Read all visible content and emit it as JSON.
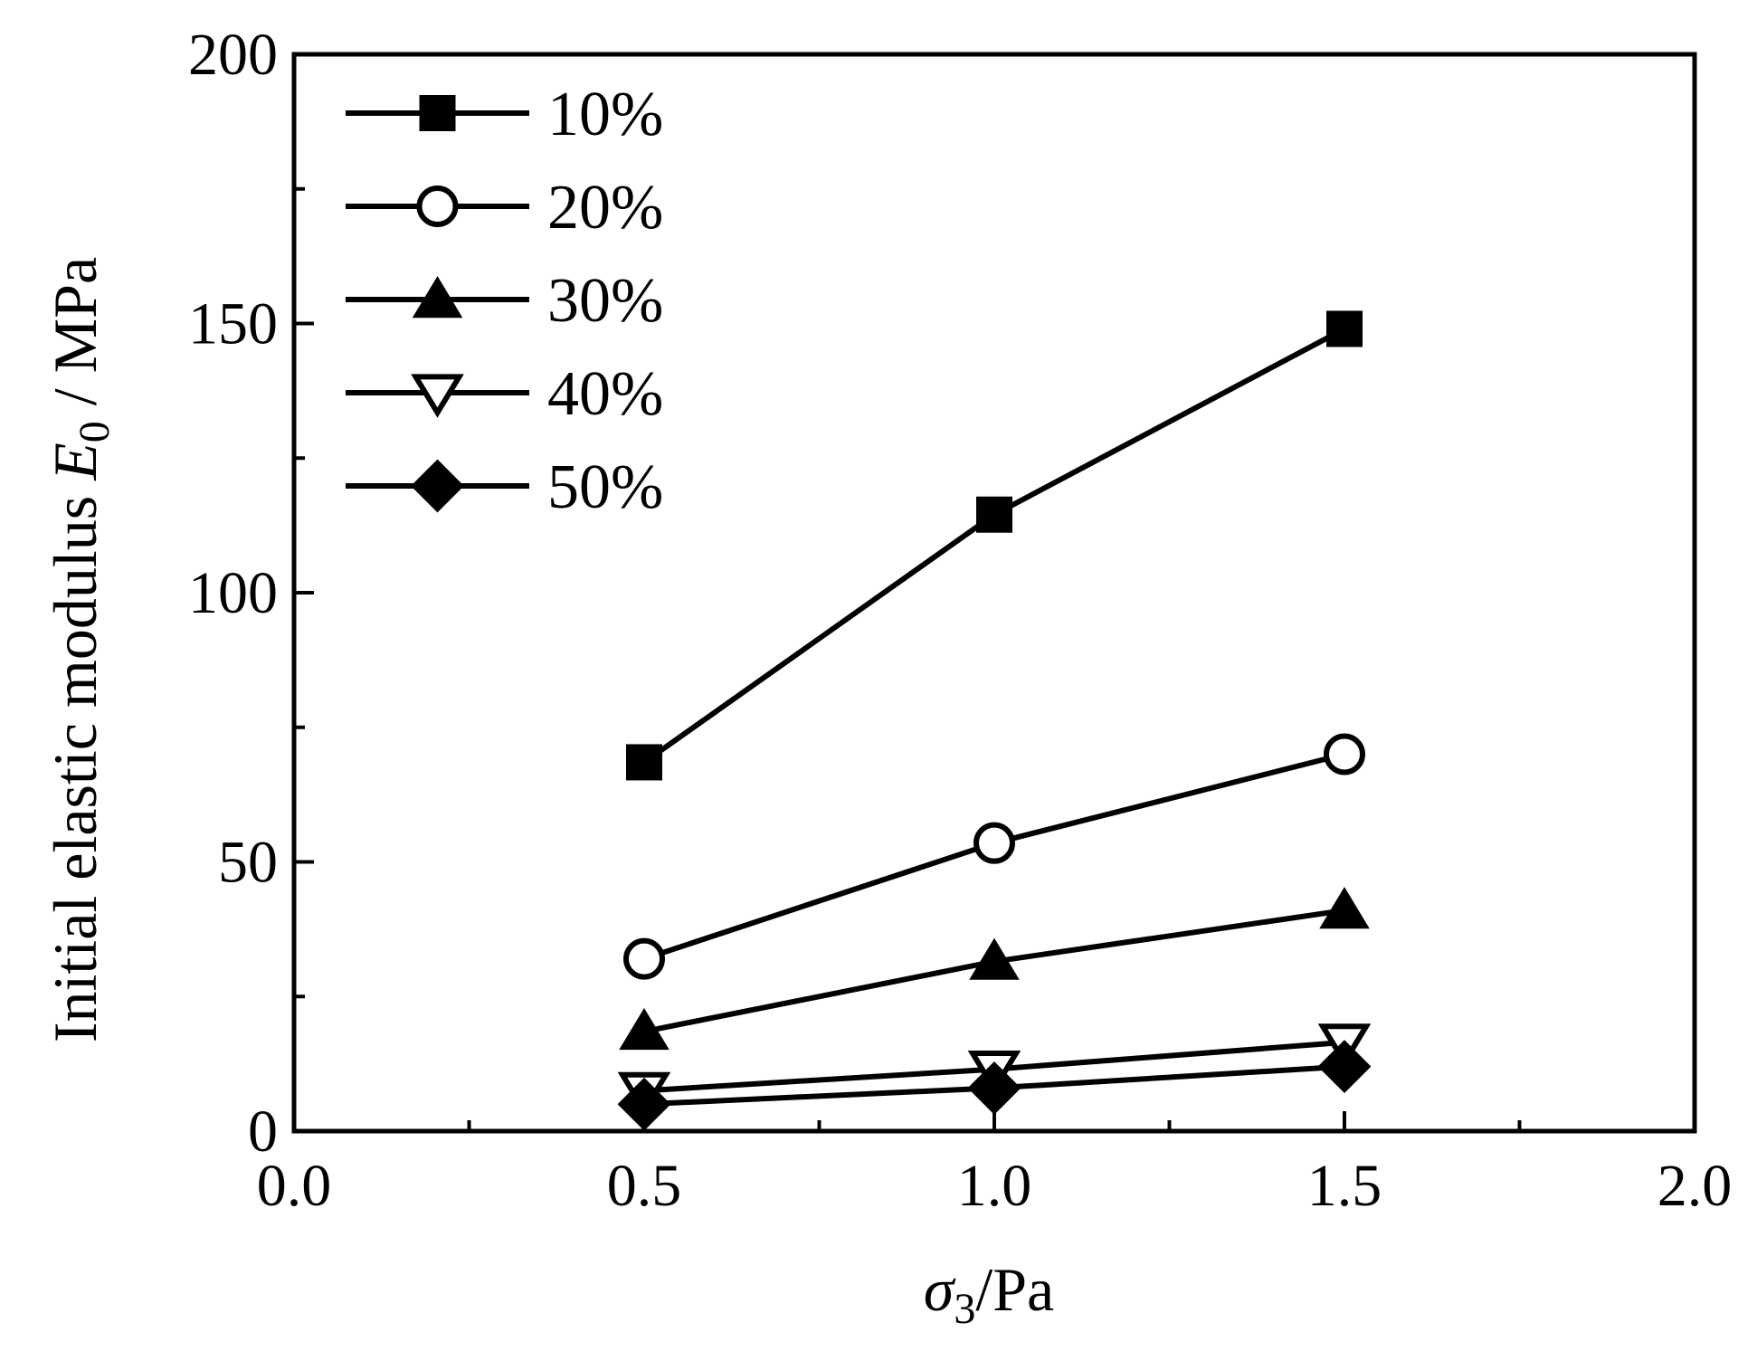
{
  "chart_data": {
    "type": "line",
    "x": [
      0.5,
      1.0,
      1.5
    ],
    "series": [
      {
        "name": "10%",
        "marker": "square-filled",
        "values": [
          68.5,
          114.5,
          149
        ]
      },
      {
        "name": "20%",
        "marker": "circle-open",
        "values": [
          32,
          53.5,
          70
        ]
      },
      {
        "name": "30%",
        "marker": "triangle-up-filled",
        "values": [
          18.5,
          31.5,
          41
        ]
      },
      {
        "name": "40%",
        "marker": "triangle-down-open",
        "values": [
          7.5,
          11.5,
          16.5
        ]
      },
      {
        "name": "50%",
        "marker": "diamond-filled",
        "values": [
          5,
          8,
          12
        ]
      }
    ],
    "xlim": [
      0.0,
      2.0
    ],
    "ylim": [
      0,
      200
    ],
    "xticks": [
      "0.0",
      "0.5",
      "1.0",
      "1.5",
      "2.0"
    ],
    "yticks": [
      "0",
      "50",
      "100",
      "150",
      "200"
    ],
    "xlabel": {
      "symbol": "σ",
      "subscript": "3",
      "unit": "/Pa"
    },
    "ylabel": {
      "text": "Initial elastic modulus ",
      "symbol": "E",
      "subscript": "0",
      "unit": " / MPa"
    },
    "legend_position": "top-left",
    "colors": {
      "line": "#000000",
      "background": "#ffffff"
    }
  }
}
